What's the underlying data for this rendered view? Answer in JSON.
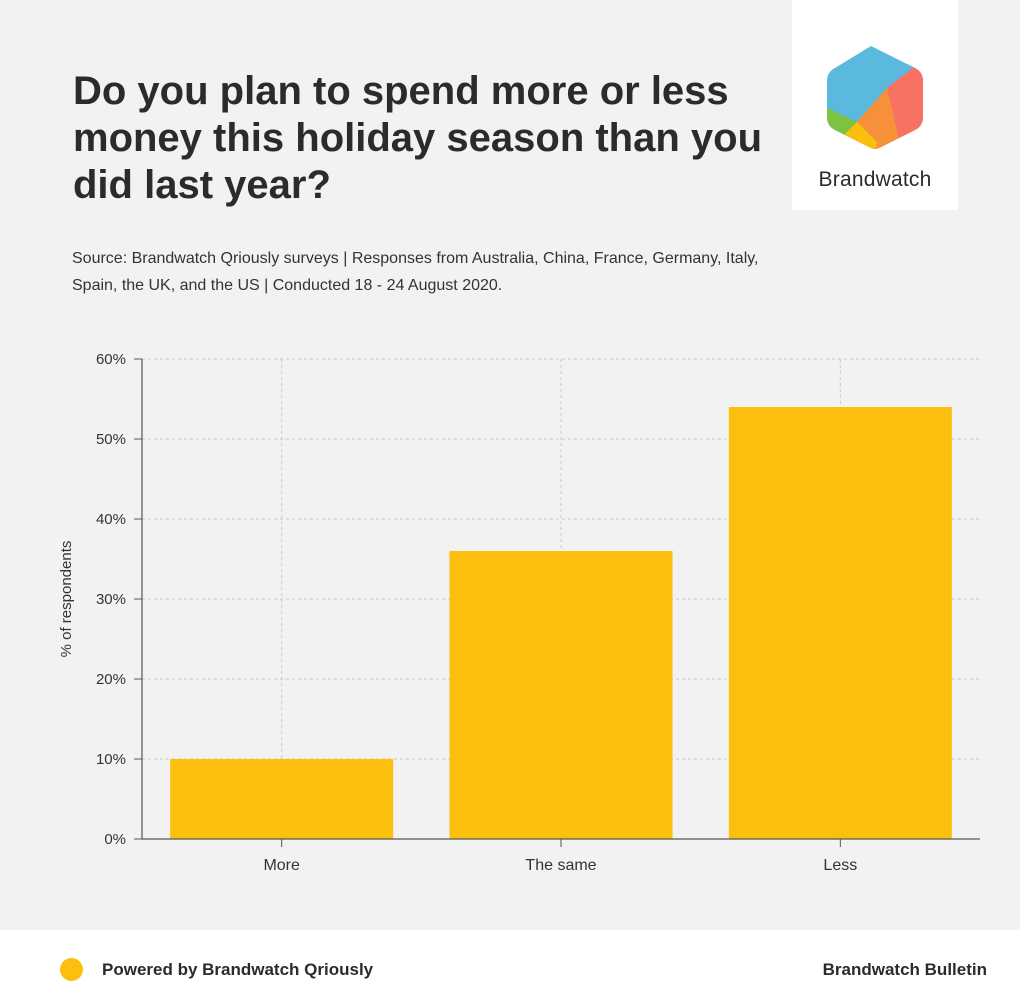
{
  "header": {
    "title": "Do you plan to spend more or less money this holiday season than you did last year?",
    "source": "Source: Brandwatch Qriously surveys | Responses from Australia, China, France, Germany, Italy, Spain, the UK, and the US | Conducted 18 - 24 August 2020."
  },
  "logo": {
    "text": "Brandwatch",
    "icon": "brandwatch-hexagon-logo"
  },
  "footer": {
    "powered_by": "Powered by Brandwatch Qriously",
    "bulletin": "Brandwatch Bulletin",
    "dot_color": "#fbbf0e"
  },
  "chart_data": {
    "type": "bar",
    "categories": [
      "More",
      "The same",
      "Less"
    ],
    "values": [
      10,
      36,
      54
    ],
    "ylabel": "% of respondents",
    "xlabel": "",
    "ylim": [
      0,
      60
    ],
    "yticks": [
      0,
      10,
      20,
      30,
      40,
      50,
      60
    ],
    "ytick_labels": [
      "0%",
      "10%",
      "20%",
      "30%",
      "40%",
      "50%",
      "60%"
    ],
    "grid": true,
    "bar_color": "#fbbf0e"
  }
}
